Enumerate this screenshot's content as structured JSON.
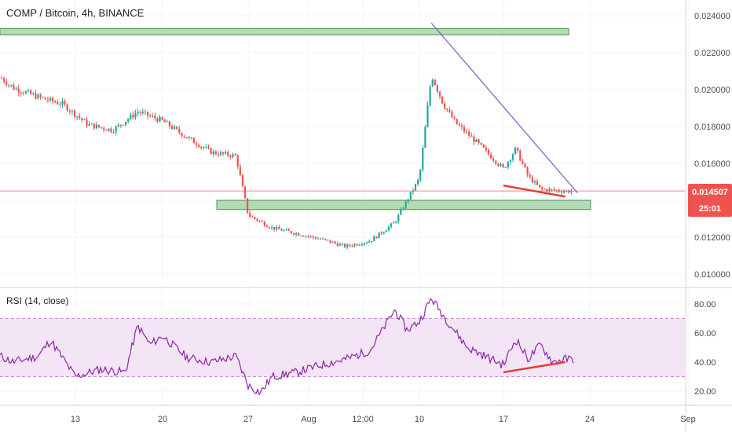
{
  "title": "COMP / Bitcoin, 4h, BINANCE",
  "rsi_title": "RSI (14, close)",
  "colors": {
    "up": "#26a69a",
    "down": "#ef5350",
    "zone_fill": "#a5d6a7",
    "zone_border": "#2e7d32",
    "trendline": "#7e57c2",
    "divergence": "#e53935",
    "price_line": "#ef5350",
    "rsi_line": "#8e24aa",
    "rsi_band": "#f3e5f5",
    "badge": "#ef5350"
  },
  "last_price": {
    "value": "0.014507",
    "countdown": "25:01"
  },
  "chart_data": [
    {
      "type": "candlestick",
      "title": "COMP / Bitcoin, 4h, BINANCE",
      "x_axis": {
        "ticks": [
          "13",
          "20",
          "27",
          "Aug",
          "12:00",
          "10",
          "17",
          "24",
          "Sep"
        ]
      },
      "y_axis": {
        "ticks": [
          "0.010000",
          "0.012000",
          "0.014000",
          "0.016000",
          "0.018000",
          "0.020000",
          "0.022000",
          "0.024000"
        ],
        "range": [
          0.0094,
          0.0252
        ]
      },
      "trend": [
        {
          "date": "Jul 6",
          "price": 0.0212
        },
        {
          "date": "Jul 8",
          "price": 0.0201
        },
        {
          "date": "Jul 10",
          "price": 0.0196
        },
        {
          "date": "Jul 12",
          "price": 0.0192
        },
        {
          "date": "Jul 14",
          "price": 0.0181
        },
        {
          "date": "Jul 16",
          "price": 0.0178
        },
        {
          "date": "Jul 18",
          "price": 0.0188
        },
        {
          "date": "Jul 20",
          "price": 0.0183
        },
        {
          "date": "Jul 22",
          "price": 0.0174
        },
        {
          "date": "Jul 24",
          "price": 0.0166
        },
        {
          "date": "Jul 26",
          "price": 0.0164
        },
        {
          "date": "Jul 27",
          "price": 0.0132
        },
        {
          "date": "Jul 29",
          "price": 0.0125
        },
        {
          "date": "Jul 31",
          "price": 0.0122
        },
        {
          "date": "Aug 2",
          "price": 0.0119
        },
        {
          "date": "Aug 4",
          "price": 0.0115
        },
        {
          "date": "Aug 6",
          "price": 0.0118
        },
        {
          "date": "Aug 8",
          "price": 0.0128
        },
        {
          "date": "Aug 9",
          "price": 0.014
        },
        {
          "date": "Aug 10",
          "price": 0.0152
        },
        {
          "date": "Aug 11",
          "price": 0.0208
        },
        {
          "date": "Aug 12",
          "price": 0.0192
        },
        {
          "date": "Aug 13",
          "price": 0.0182
        },
        {
          "date": "Aug 15",
          "price": 0.017
        },
        {
          "date": "Aug 17",
          "price": 0.0157
        },
        {
          "date": "Aug 18",
          "price": 0.0168
        },
        {
          "date": "Aug 19",
          "price": 0.0153
        },
        {
          "date": "Aug 20",
          "price": 0.0146
        },
        {
          "date": "Aug 22",
          "price": 0.0145
        }
      ],
      "zones": [
        {
          "top": 0.0233,
          "bottom": 0.0231
        },
        {
          "top": 0.014,
          "bottom": 0.0135
        }
      ],
      "trendline": {
        "from": {
          "date": "Aug 11",
          "price": 0.0236
        },
        "to": {
          "date": "Aug 23",
          "price": 0.0144
        }
      },
      "divergence_line": {
        "from": {
          "date": "Aug 17",
          "price": 0.0148
        },
        "to": {
          "date": "Aug 22",
          "price": 0.0142
        }
      },
      "last_price": 0.014507
    },
    {
      "type": "line",
      "title": "RSI (14, close)",
      "x_axis": {
        "ticks": [
          "13",
          "20",
          "27",
          "Aug",
          "12:00",
          "10",
          "17",
          "24",
          "Sep"
        ]
      },
      "y_axis": {
        "ticks": [
          "20.00",
          "40.00",
          "60.00",
          "80.00"
        ],
        "range": [
          12,
          90
        ]
      },
      "band": [
        30,
        70
      ],
      "series": [
        {
          "values": [
            {
              "date": "Jul 6",
              "rsi": 48
            },
            {
              "date": "Jul 8",
              "rsi": 40
            },
            {
              "date": "Jul 10",
              "rsi": 44
            },
            {
              "date": "Jul 11",
              "rsi": 55
            },
            {
              "date": "Jul 13",
              "rsi": 30
            },
            {
              "date": "Jul 15",
              "rsi": 35
            },
            {
              "date": "Jul 17",
              "rsi": 33
            },
            {
              "date": "Jul 18",
              "rsi": 65
            },
            {
              "date": "Jul 19",
              "rsi": 52
            },
            {
              "date": "Jul 20",
              "rsi": 58
            },
            {
              "date": "Jul 22",
              "rsi": 43
            },
            {
              "date": "Jul 24",
              "rsi": 40
            },
            {
              "date": "Jul 26",
              "rsi": 44
            },
            {
              "date": "Jul 27",
              "rsi": 24
            },
            {
              "date": "Jul 28",
              "rsi": 19
            },
            {
              "date": "Jul 29",
              "rsi": 30
            },
            {
              "date": "Jul 31",
              "rsi": 33
            },
            {
              "date": "Aug 2",
              "rsi": 38
            },
            {
              "date": "Aug 4",
              "rsi": 42
            },
            {
              "date": "Aug 6",
              "rsi": 48
            },
            {
              "date": "Aug 8",
              "rsi": 76
            },
            {
              "date": "Aug 9",
              "rsi": 62
            },
            {
              "date": "Aug 10",
              "rsi": 68
            },
            {
              "date": "Aug 11",
              "rsi": 84
            },
            {
              "date": "Aug 12",
              "rsi": 72
            },
            {
              "date": "Aug 14",
              "rsi": 50
            },
            {
              "date": "Aug 16",
              "rsi": 42
            },
            {
              "date": "Aug 17",
              "rsi": 38
            },
            {
              "date": "Aug 18",
              "rsi": 56
            },
            {
              "date": "Aug 19",
              "rsi": 42
            },
            {
              "date": "Aug 20",
              "rsi": 52
            },
            {
              "date": "Aug 21",
              "rsi": 40
            },
            {
              "date": "Aug 22",
              "rsi": 42
            }
          ]
        }
      ],
      "divergence_line": {
        "from": {
          "date": "Aug 17",
          "rsi": 33
        },
        "to": {
          "date": "Aug 22",
          "rsi": 40
        }
      }
    }
  ]
}
